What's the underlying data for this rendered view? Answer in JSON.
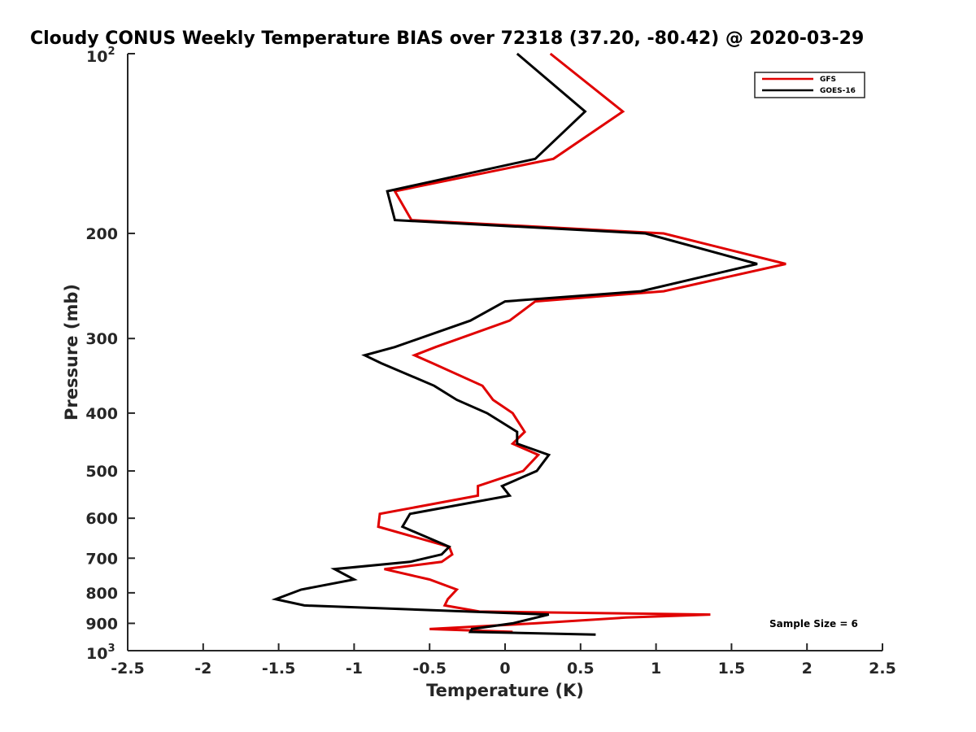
{
  "chart_data": {
    "type": "line",
    "title": "Cloudy CONUS Weekly Temperature BIAS over 72318 (37.20, -80.42) @ 2020-03-29",
    "xlabel": "Temperature (K)",
    "ylabel": "Pressure (mb)",
    "xlim": [
      -2.5,
      2.5
    ],
    "ylim": [
      100,
      1000
    ],
    "y_scale": "log",
    "y_reversed": true,
    "grid": false,
    "legend_position": "top-right",
    "annotation": "Sample Size = 6",
    "x_ticks": [
      -2.5,
      -2,
      -1.5,
      -1,
      -0.5,
      0,
      0.5,
      1,
      1.5,
      2,
      2.5
    ],
    "x_tick_labels": [
      "-2.5",
      "-2",
      "-1.5",
      "-1",
      "-0.5",
      "0",
      "0.5",
      "1",
      "1.5",
      "2",
      "2.5"
    ],
    "y_ticks": [
      200,
      300,
      400,
      500,
      600,
      700,
      800,
      900
    ],
    "y_tick_labels": [
      "200",
      "300",
      "400",
      "500",
      "600",
      "700",
      "800",
      "900"
    ],
    "y_tick_base": "10",
    "y_tick_top_exp": "2",
    "y_tick_bottom_exp": "3",
    "series": [
      {
        "name": "GFS",
        "color": "#e00000",
        "points": [
          [
            0.3,
            100
          ],
          [
            0.78,
            125
          ],
          [
            0.32,
            150
          ],
          [
            -0.73,
            170
          ],
          [
            -0.62,
            190
          ],
          [
            1.05,
            200
          ],
          [
            1.86,
            225
          ],
          [
            1.05,
            250
          ],
          [
            0.2,
            260
          ],
          [
            0.03,
            280
          ],
          [
            -0.46,
            310
          ],
          [
            -0.6,
            320
          ],
          [
            -0.48,
            330
          ],
          [
            -0.15,
            360
          ],
          [
            -0.08,
            380
          ],
          [
            0.05,
            400
          ],
          [
            0.13,
            430
          ],
          [
            0.05,
            450
          ],
          [
            0.22,
            470
          ],
          [
            0.12,
            500
          ],
          [
            -0.18,
            530
          ],
          [
            -0.18,
            550
          ],
          [
            -0.83,
            590
          ],
          [
            -0.84,
            620
          ],
          [
            -0.37,
            670
          ],
          [
            -0.35,
            690
          ],
          [
            -0.42,
            710
          ],
          [
            -0.8,
            730
          ],
          [
            -0.5,
            760
          ],
          [
            -0.32,
            790
          ],
          [
            -0.38,
            820
          ],
          [
            -0.4,
            840
          ],
          [
            -0.17,
            860
          ],
          [
            1.36,
            870
          ],
          [
            0.8,
            880
          ],
          [
            0.2,
            900
          ],
          [
            -0.5,
            920
          ],
          [
            0.05,
            930
          ]
        ]
      },
      {
        "name": "GOES-16",
        "color": "#000000",
        "points": [
          [
            0.08,
            100
          ],
          [
            0.53,
            125
          ],
          [
            0.2,
            150
          ],
          [
            -0.78,
            170
          ],
          [
            -0.73,
            190
          ],
          [
            0.93,
            200
          ],
          [
            1.67,
            225
          ],
          [
            0.9,
            250
          ],
          [
            0.0,
            260
          ],
          [
            -0.23,
            280
          ],
          [
            -0.73,
            310
          ],
          [
            -0.93,
            320
          ],
          [
            -0.82,
            330
          ],
          [
            -0.47,
            360
          ],
          [
            -0.32,
            380
          ],
          [
            -0.12,
            400
          ],
          [
            0.08,
            430
          ],
          [
            0.08,
            450
          ],
          [
            0.29,
            470
          ],
          [
            0.21,
            500
          ],
          [
            -0.02,
            530
          ],
          [
            0.03,
            550
          ],
          [
            -0.63,
            590
          ],
          [
            -0.68,
            620
          ],
          [
            -0.37,
            670
          ],
          [
            -0.42,
            690
          ],
          [
            -0.63,
            710
          ],
          [
            -1.13,
            730
          ],
          [
            -1.0,
            760
          ],
          [
            -1.35,
            790
          ],
          [
            -1.52,
            820
          ],
          [
            -1.33,
            840
          ],
          [
            0.29,
            870
          ],
          [
            0.05,
            900
          ],
          [
            -0.22,
            920
          ],
          [
            -0.23,
            930
          ],
          [
            0.6,
            940
          ]
        ]
      }
    ]
  }
}
